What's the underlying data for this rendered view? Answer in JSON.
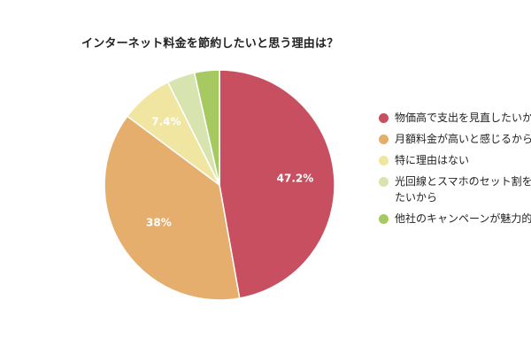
{
  "chart_data": {
    "type": "pie",
    "title": "インターネット料金を節約したいと思う理由は？",
    "slices": [
      {
        "label": "物価高で支出を見直したいから",
        "value": 47.2,
        "display": "47.2%",
        "color": "#c84f5f"
      },
      {
        "label": "月額料金が高いと感じるから",
        "value": 38,
        "display": "38%",
        "color": "#e6ae6c"
      },
      {
        "label": "特に理由はない",
        "value": 7.4,
        "display": "7.4%",
        "color": "#f0e6a2"
      },
      {
        "label": "光回線とスマホのセット割を活用したいから",
        "value": 3.9,
        "display": "",
        "color": "#d8e4b0"
      },
      {
        "label": "他社のキャンペーンが魅力的だから",
        "value": 3.5,
        "display": "",
        "color": "#a6c962"
      }
    ],
    "start_angle_deg": 0,
    "direction": "clockwise",
    "legend_position": "right"
  }
}
